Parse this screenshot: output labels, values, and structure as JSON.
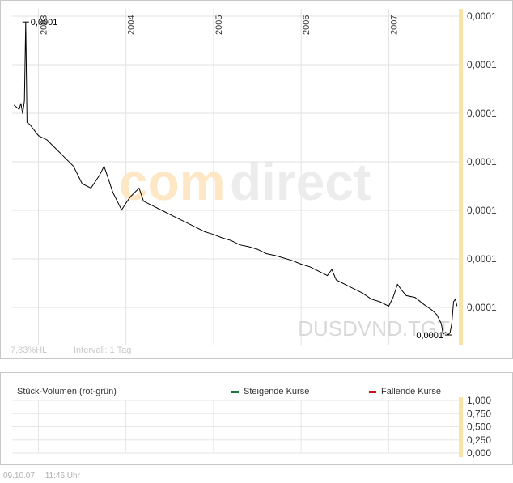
{
  "chart_data": [
    {
      "type": "line",
      "title": "",
      "series": [
        {
          "values_x": [
            2002.72,
            2002.78,
            2002.8,
            2002.82,
            2002.84,
            2002.855,
            2002.87,
            2002.9,
            2003.0,
            2003.1,
            2003.2,
            2003.3,
            2003.4,
            2003.5,
            2003.6,
            2003.7,
            2003.75,
            2003.8,
            2003.85,
            2003.9,
            2003.95,
            2004.0,
            2004.05,
            2004.1,
            2004.15,
            2004.2,
            2004.3,
            2004.4,
            2004.5,
            2004.6,
            2004.7,
            2004.8,
            2004.9,
            2005.0,
            2005.1,
            2005.2,
            2005.3,
            2005.4,
            2005.5,
            2005.6,
            2005.7,
            2005.8,
            2005.9,
            2006.0,
            2006.1,
            2006.2,
            2006.3,
            2006.35,
            2006.4,
            2006.5,
            2006.6,
            2006.7,
            2006.8,
            2006.9,
            2007.0,
            2007.05,
            2007.1,
            2007.15,
            2007.2,
            2007.3,
            2007.4,
            2007.5,
            2007.55,
            2007.6,
            2007.62,
            2007.65,
            2007.68,
            2007.7,
            2007.72,
            2007.74,
            2007.76,
            2007.78
          ],
          "values_y": [
            8.9e-05,
            8.85e-05,
            8.92e-05,
            8.8e-05,
            8.95e-05,
            9.85e-05,
            8.7e-05,
            8.68e-05,
            8.55e-05,
            8.5e-05,
            8.4e-05,
            8.3e-05,
            8.2e-05,
            8e-05,
            7.95e-05,
            8.1e-05,
            8.2e-05,
            8.05e-05,
            7.9e-05,
            7.8e-05,
            7.7e-05,
            7.78e-05,
            7.85e-05,
            7.9e-05,
            7.95e-05,
            7.8e-05,
            7.75e-05,
            7.7e-05,
            7.65e-05,
            7.6e-05,
            7.55e-05,
            7.5e-05,
            7.45e-05,
            7.42e-05,
            7.38e-05,
            7.35e-05,
            7.3e-05,
            7.28e-05,
            7.25e-05,
            7.2e-05,
            7.18e-05,
            7.15e-05,
            7.12e-05,
            7.08e-05,
            7.05e-05,
            7e-05,
            6.95e-05,
            7.02e-05,
            6.9e-05,
            6.85e-05,
            6.8e-05,
            6.75e-05,
            6.68e-05,
            6.65e-05,
            6.6e-05,
            6.7e-05,
            6.85e-05,
            6.78e-05,
            6.72e-05,
            6.7e-05,
            6.62e-05,
            6.55e-05,
            6.5e-05,
            6.4e-05,
            6.28e-05,
            6.3e-05,
            6.27e-05,
            6.3e-05,
            6.4e-05,
            6.65e-05,
            6.68e-05,
            6.6e-05
          ]
        }
      ],
      "xlim": [
        2002.7,
        2007.8
      ],
      "ylim": [
        6.15e-05,
        0.0001
      ],
      "x_tick_labels": [
        "2003",
        "2004",
        "2005",
        "2006",
        "2007"
      ],
      "y_tick_labels": [
        "0,0001",
        "0,0001",
        "0,0001",
        "0,0001",
        "0,0001",
        "0,0001",
        "0,0001"
      ],
      "annotations": {
        "max_label": "0,0001",
        "min_label": "0,0001"
      },
      "watermark": "comdirect",
      "instrument_label": "DUSDVND.TGT",
      "info_left": "7,83%HL",
      "info_interval": "Intervall: 1 Tag",
      "grid": true,
      "colors": {
        "line": "#000000",
        "grid": "#e2e2e2",
        "highlight_band": "#fbe3a8",
        "watermark_orange": "#fde7c5",
        "watermark_gray": "#ececec"
      }
    },
    {
      "type": "bar",
      "title": "Stück-Volumen (rot-grün)",
      "legend": [
        {
          "name": "Steigende Kurse",
          "color": "#1a7a3a"
        },
        {
          "name": "Fallende Kurse",
          "color": "#cc1111"
        }
      ],
      "y_tick_labels": [
        "1,000",
        "0,750",
        "0,500",
        "0,250",
        "0,000"
      ],
      "ylim": [
        0,
        1
      ],
      "values": []
    }
  ],
  "footer": {
    "date": "09.10.07",
    "time": "11:46 Uhr"
  }
}
